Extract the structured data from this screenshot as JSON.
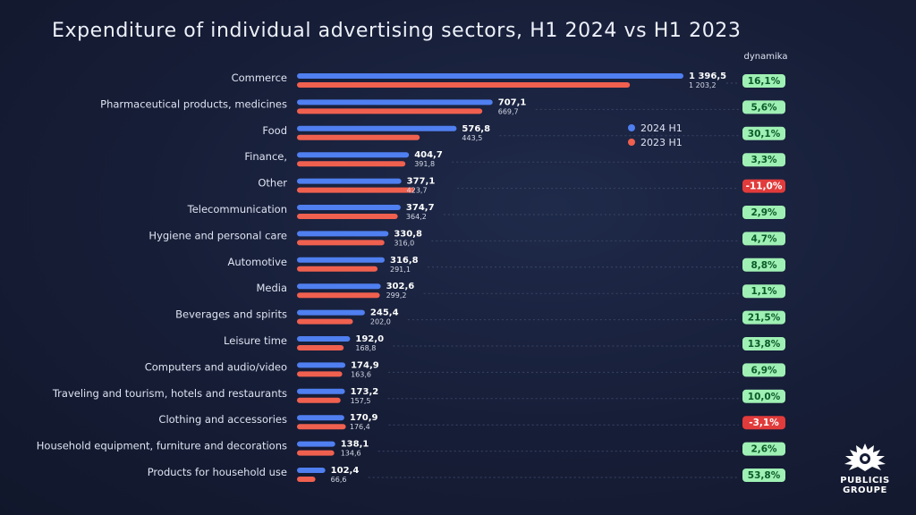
{
  "page": {
    "title": "Expenditure of individual advertising sectors, H1 2024 vs H1 2023",
    "dynamics_header": "dynamika",
    "logo_text": "PUBLICIS\nGROUPE",
    "colors": {
      "series_2024": "#4f7ff0",
      "series_2023": "#f0604f",
      "badge_positive": "#9ff0b4",
      "badge_positive_text": "#0b5a2a",
      "badge_negative": "#e13b3b",
      "badge_negative_text": "#ffffff"
    }
  },
  "chart_data": {
    "type": "bar",
    "orientation": "horizontal",
    "title": "Expenditure of individual advertising sectors, H1 2024 vs H1 2023",
    "categories": [
      "Commerce",
      "Pharmaceutical products, medicines",
      "Food",
      "Finance,",
      "Other",
      "Telecommunication",
      "Hygiene and personal care",
      "Automotive",
      "Media",
      "Beverages and spirits",
      "Leisure time",
      "Computers and audio/video",
      "Traveling and tourism, hotels and restaurants",
      "Clothing and accessories",
      "Household equipment, furniture and decorations",
      "Products for household use"
    ],
    "series": [
      {
        "name": "2024 H1",
        "values": [
          1396.5,
          707.1,
          576.8,
          404.7,
          377.1,
          374.7,
          330.8,
          316.8,
          302.6,
          245.4,
          192.0,
          174.9,
          173.2,
          170.9,
          138.1,
          102.4
        ],
        "labels": [
          "1 396,5",
          "707,1",
          "576,8",
          "404,7",
          "377,1",
          "374,7",
          "330,8",
          "316,8",
          "302,6",
          "245,4",
          "192,0",
          "174,9",
          "173,2",
          "170,9",
          "138,1",
          "102,4"
        ]
      },
      {
        "name": "2023 H1",
        "values": [
          1203.2,
          669.7,
          443.5,
          391.8,
          423.7,
          364.2,
          316.0,
          291.1,
          299.2,
          202.0,
          168.8,
          163.6,
          157.5,
          176.4,
          134.6,
          66.6
        ],
        "labels": [
          "1 203,2",
          "669,7",
          "443,5",
          "391,8",
          "423,7",
          "364,2",
          "316,0",
          "291,1",
          "299,2",
          "202,0",
          "168,8",
          "163,6",
          "157,5",
          "176,4",
          "134,6",
          "66,6"
        ]
      }
    ],
    "dynamics": {
      "values": [
        16.1,
        5.6,
        30.1,
        3.3,
        -11.0,
        2.9,
        4.7,
        8.8,
        1.1,
        21.5,
        13.8,
        6.9,
        10.0,
        -3.1,
        2.6,
        53.8
      ],
      "labels": [
        "16,1%",
        "5,6%",
        "30,1%",
        "3,3%",
        "-11,0%",
        "2,9%",
        "4,7%",
        "8,8%",
        "1,1%",
        "21,5%",
        "13,8%",
        "6,9%",
        "10,0%",
        "-3,1%",
        "2,6%",
        "53,8%"
      ]
    },
    "xlim": [
      0,
      1396.5
    ],
    "grid": false,
    "legend": {
      "position": "right",
      "entries": [
        "2024 H1",
        "2023 H1"
      ]
    }
  }
}
